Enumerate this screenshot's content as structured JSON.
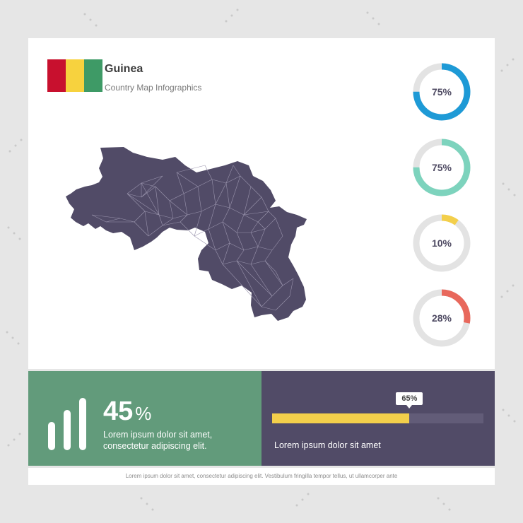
{
  "header": {
    "title": "Guinea",
    "subtitle": "Country Map Infographics",
    "flag_colors": [
      "#c8102e",
      "#f7d23e",
      "#3e9a66"
    ]
  },
  "map": {
    "fill": "#514b67",
    "line": "#9a94ad"
  },
  "donuts": [
    {
      "label": "75%",
      "value": 75,
      "color": "#1e9ad6"
    },
    {
      "label": "75%",
      "value": 75,
      "color": "#7dd3bd"
    },
    {
      "label": "10%",
      "value": 10,
      "color": "#f3cf4b"
    },
    {
      "label": "28%",
      "value": 28,
      "color": "#e8685c"
    }
  ],
  "stat": {
    "number": "45",
    "symbol": "%",
    "text_line1": "Lorem ipsum dolor sit amet,",
    "text_line2": "consectetur adipiscing elit."
  },
  "progress": {
    "label": "65%",
    "value": 65,
    "text": "Lorem ipsum dolor sit amet"
  },
  "footer": {
    "text": "Lorem ipsum dolor sit amet, consectetur adipiscing elit. Vestibulum fringilla tempor tellus, ut ullamcorper ante"
  },
  "colors": {
    "green_panel": "#629b7b",
    "purple_panel": "#514b67",
    "track": "#e3e3e3"
  }
}
